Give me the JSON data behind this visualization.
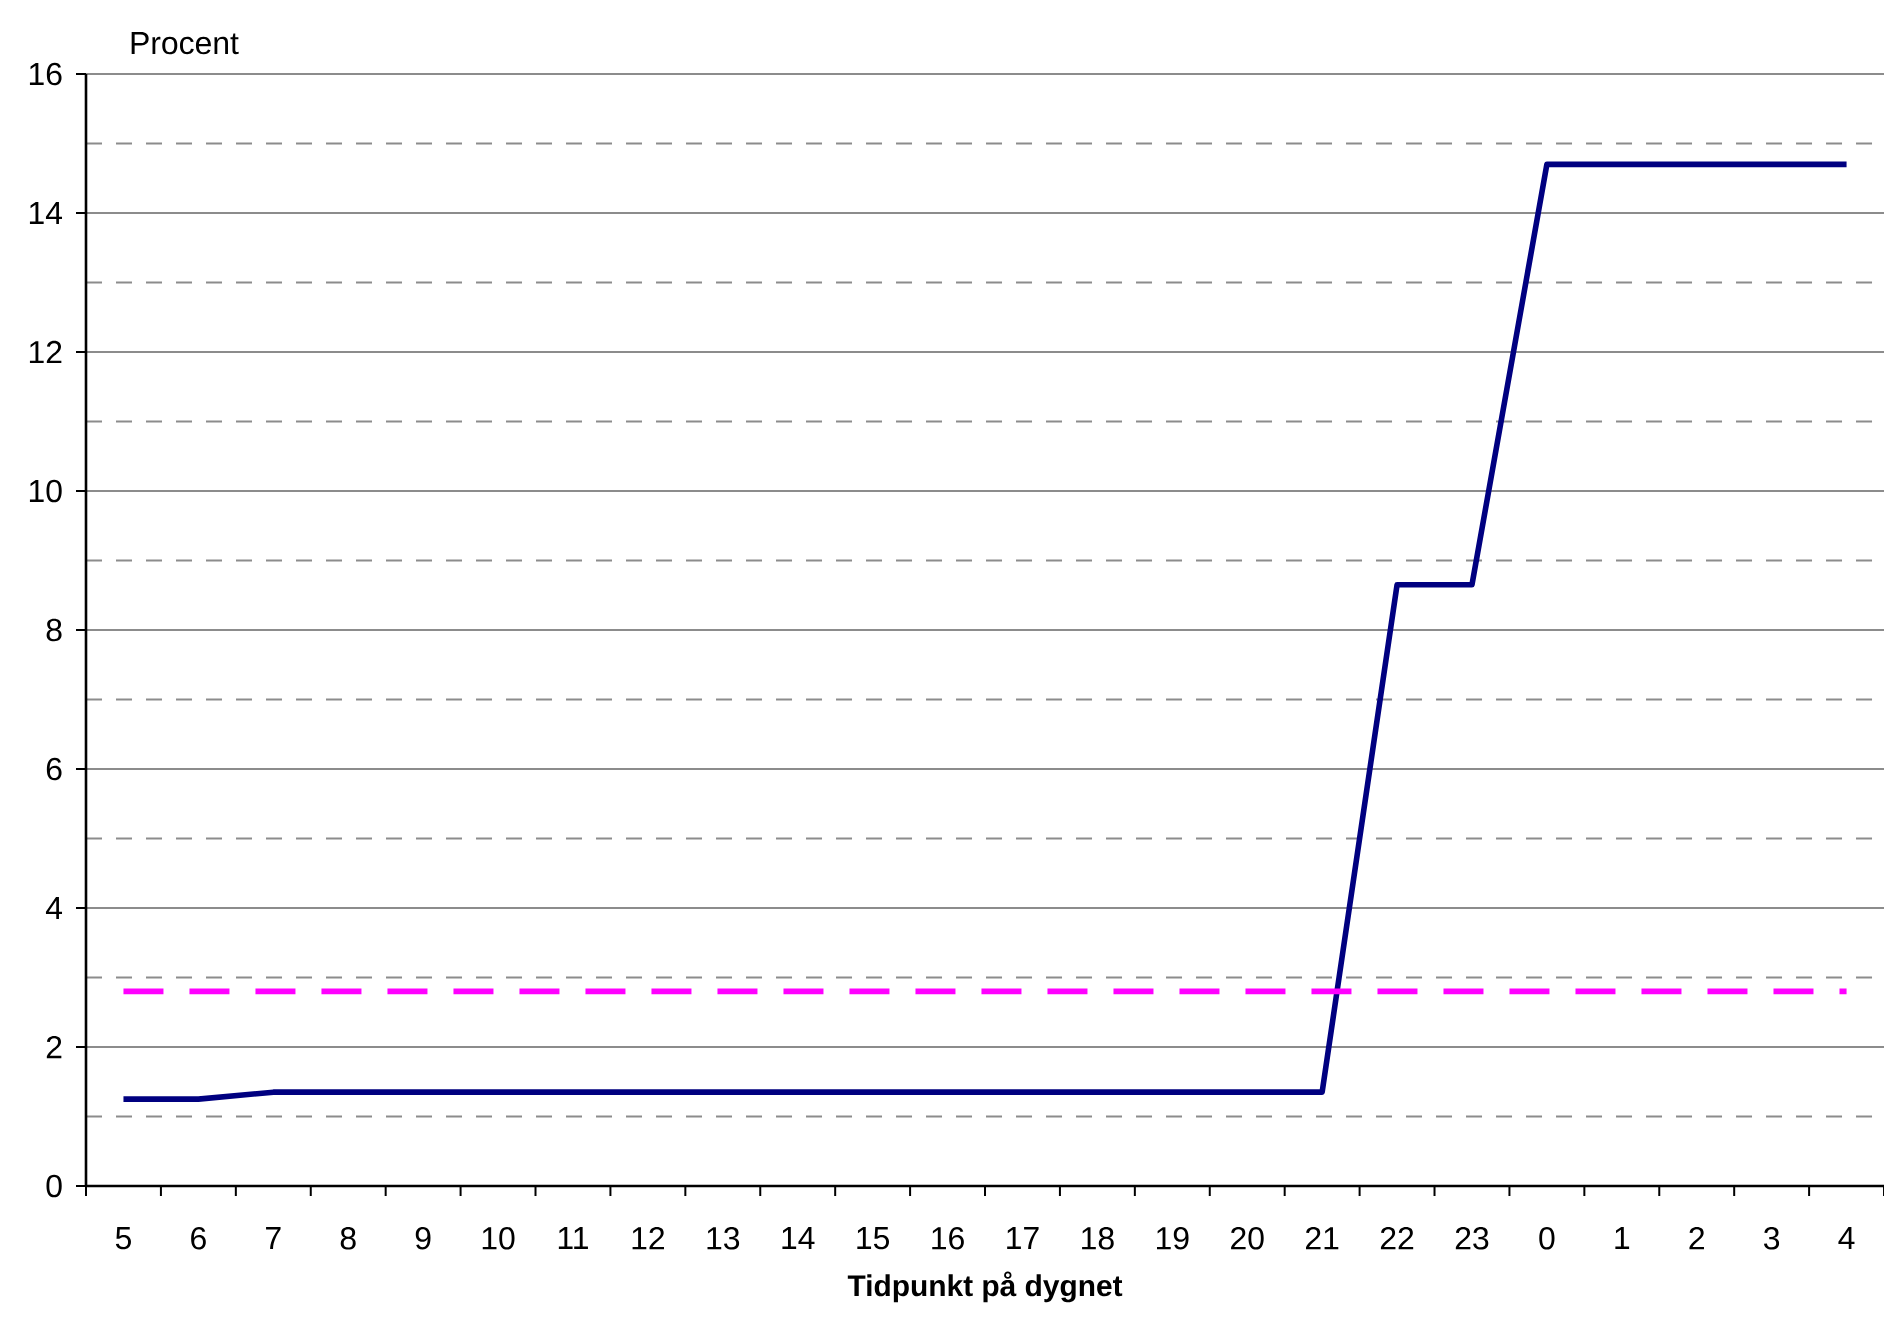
{
  "chart_data": {
    "type": "line",
    "xlabel": "Tidpunkt på dygnet",
    "ylabel": "Procent",
    "categories": [
      "5",
      "6",
      "7",
      "8",
      "9",
      "10",
      "11",
      "12",
      "13",
      "14",
      "15",
      "16",
      "17",
      "18",
      "19",
      "20",
      "21",
      "22",
      "23",
      "0",
      "1",
      "2",
      "3",
      "4"
    ],
    "series": [
      {
        "color": "#000080",
        "line_style": "solid",
        "values": [
          1.25,
          1.25,
          1.35,
          1.35,
          1.35,
          1.35,
          1.35,
          1.35,
          1.35,
          1.35,
          1.35,
          1.35,
          1.35,
          1.35,
          1.35,
          1.35,
          1.35,
          8.65,
          8.65,
          14.7,
          14.7,
          14.7,
          14.7,
          14.7
        ]
      },
      {
        "color": "#ff00ff",
        "line_style": "dashed",
        "values": [
          2.8,
          2.8,
          2.8,
          2.8,
          2.8,
          2.8,
          2.8,
          2.8,
          2.8,
          2.8,
          2.8,
          2.8,
          2.8,
          2.8,
          2.8,
          2.8,
          2.8,
          2.8,
          2.8,
          2.8,
          2.8,
          2.8,
          2.8,
          2.8
        ]
      }
    ],
    "ylim": [
      0,
      16
    ],
    "yticks": [
      0,
      {
        "value": 1,
        "label": null
      },
      2,
      {
        "value": 3,
        "label": null
      },
      4,
      {
        "value": 5,
        "label": null
      },
      6,
      {
        "value": 7,
        "label": null
      },
      8,
      {
        "value": 9,
        "label": null
      },
      10,
      {
        "value": 11,
        "label": null
      },
      12,
      {
        "value": 13,
        "label": null
      },
      14,
      {
        "value": 15,
        "label": null
      },
      16
    ],
    "grid": "y"
  }
}
